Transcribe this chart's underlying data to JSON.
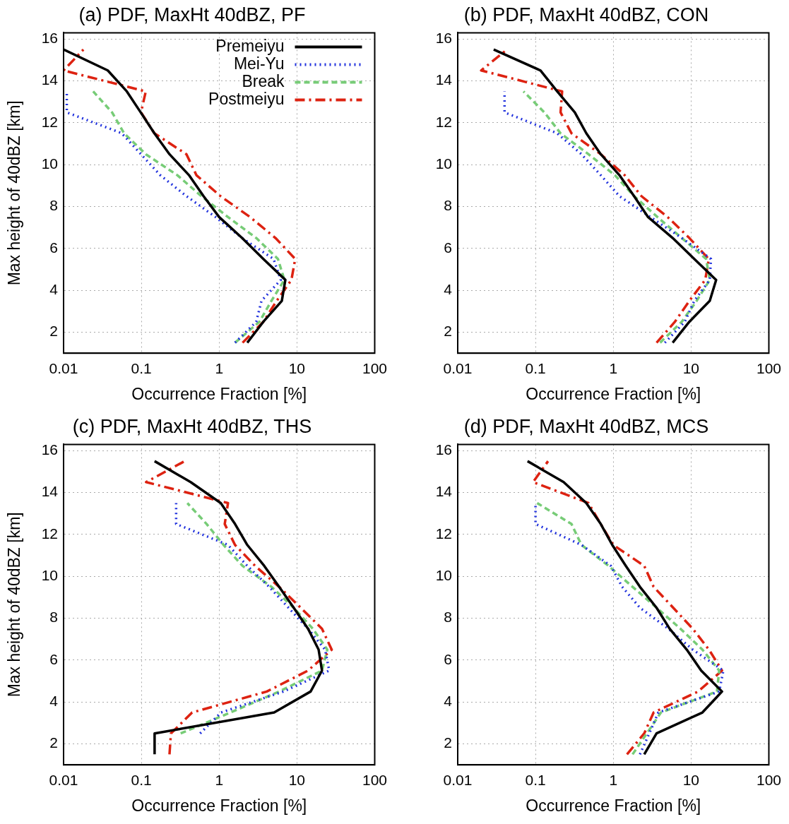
{
  "chart_data": [
    {
      "type": "line",
      "title": "(a) PDF, MaxHt 40dBZ, PF",
      "xlabel": "Occurrence Fraction [%]",
      "ylabel": "Max height of 40dBZ [km]",
      "log": "x",
      "xlim": [
        0.01,
        100
      ],
      "xticks": [
        0.01,
        0.1,
        1,
        10,
        100
      ],
      "ylim": [
        1,
        16.3
      ],
      "yticks": [
        2,
        4,
        6,
        8,
        10,
        12,
        14,
        16
      ],
      "grid": true,
      "legend": "top right",
      "series": [
        {
          "name": "Premeiyu",
          "color": "#000000",
          "line_style": "solid",
          "x": [
            2.3,
            3.7,
            6.4,
            7.1,
            3.7,
            1.97,
            1.0,
            0.63,
            0.41,
            0.23,
            0.147,
            0.098,
            0.065,
            0.037,
            0.01
          ],
          "values": [
            1.5,
            2.5,
            3.5,
            4.5,
            5.5,
            6.5,
            7.5,
            8.5,
            9.5,
            10.5,
            11.5,
            12.5,
            13.5,
            14.5,
            15.5
          ]
        },
        {
          "name": "Mei-Yu",
          "color": "#2233dd",
          "line_style": "dotted",
          "x": [
            1.6,
            3.0,
            3.5,
            6.2,
            5.0,
            1.97,
            0.9,
            0.38,
            0.175,
            0.099,
            0.056,
            0.011,
            0.011
          ],
          "values": [
            1.5,
            2.5,
            3.5,
            4.5,
            5.5,
            6.5,
            7.5,
            8.5,
            9.5,
            10.5,
            11.5,
            12.5,
            13.5
          ]
        },
        {
          "name": "Break",
          "color": "#77cc77",
          "line_style": "dashed",
          "x": [
            1.6,
            3.3,
            4.7,
            6.9,
            5.7,
            3.0,
            1.3,
            0.59,
            0.29,
            0.114,
            0.06,
            0.042,
            0.024
          ],
          "values": [
            1.5,
            2.5,
            3.5,
            4.5,
            5.5,
            6.5,
            7.5,
            8.5,
            9.5,
            10.5,
            11.5,
            12.5,
            13.5
          ]
        },
        {
          "name": "Postmeiyu",
          "color": "#dd2211",
          "line_style": "dashdot",
          "x": [
            2.0,
            3.7,
            5.5,
            8.5,
            9.5,
            5.3,
            2.5,
            1.04,
            0.51,
            0.38,
            0.147,
            0.099,
            0.114,
            0.01,
            0.018
          ],
          "values": [
            1.5,
            2.5,
            3.5,
            4.5,
            5.5,
            6.5,
            7.5,
            8.5,
            9.5,
            10.5,
            11.5,
            12.5,
            13.5,
            14.5,
            15.5
          ]
        }
      ]
    },
    {
      "type": "line",
      "title": "(b) PDF, MaxHt 40dBZ, CON",
      "xlabel": "Occurrence Fraction [%]",
      "log": "x",
      "xlim": [
        0.01,
        100
      ],
      "xticks": [
        0.01,
        0.1,
        1,
        10,
        100
      ],
      "ylim": [
        1,
        16.3
      ],
      "yticks": [
        2,
        4,
        6,
        8,
        10,
        12,
        14,
        16
      ],
      "grid": true,
      "series": [
        {
          "color": "#000000",
          "line_style": "solid",
          "x": [
            5.8,
            9.5,
            17.4,
            21,
            11,
            5.8,
            2.8,
            1.85,
            1.2,
            0.69,
            0.45,
            0.32,
            0.19,
            0.116,
            0.029
          ],
          "values": [
            1.5,
            2.5,
            3.5,
            4.5,
            5.5,
            6.5,
            7.5,
            8.5,
            9.5,
            10.5,
            11.5,
            12.5,
            13.5,
            14.5,
            15.5
          ]
        },
        {
          "color": "#2233dd",
          "line_style": "dotted",
          "x": [
            4.6,
            8.3,
            11,
            17.4,
            18,
            7.6,
            3.0,
            1.2,
            0.69,
            0.39,
            0.19,
            0.04,
            0.04
          ],
          "values": [
            1.5,
            2.5,
            3.5,
            4.5,
            5.5,
            6.5,
            7.5,
            8.5,
            9.5,
            10.5,
            11.5,
            12.5,
            13.5
          ]
        },
        {
          "color": "#77cc77",
          "line_style": "dashed",
          "x": [
            4.0,
            7.6,
            11.8,
            17.4,
            15.6,
            7.6,
            3.7,
            1.85,
            1.05,
            0.48,
            0.21,
            0.13,
            0.07
          ],
          "values": [
            1.5,
            2.5,
            3.5,
            4.5,
            5.5,
            6.5,
            7.5,
            8.5,
            9.5,
            10.5,
            11.5,
            12.5,
            13.5
          ]
        },
        {
          "color": "#dd2211",
          "line_style": "dashdot",
          "x": [
            3.6,
            6.2,
            9.5,
            15.2,
            16.9,
            9.5,
            5.0,
            2.3,
            1.4,
            0.69,
            0.29,
            0.21,
            0.22,
            0.02,
            0.043
          ],
          "values": [
            1.5,
            2.5,
            3.5,
            4.5,
            5.5,
            6.5,
            7.5,
            8.5,
            9.5,
            10.5,
            11.5,
            12.5,
            13.5,
            14.5,
            15.5
          ]
        }
      ]
    },
    {
      "type": "line",
      "title": "(c) PDF, MaxHt 40dBZ, THS",
      "xlabel": "Occurrence Fraction [%]",
      "ylabel": "Max height of 40dBZ [km]",
      "log": "x",
      "xlim": [
        0.01,
        100
      ],
      "xticks": [
        0.01,
        0.1,
        1,
        10,
        100
      ],
      "ylim": [
        1,
        16.3
      ],
      "yticks": [
        2,
        4,
        6,
        8,
        10,
        12,
        14,
        16
      ],
      "grid": true,
      "series": [
        {
          "color": "#000000",
          "line_style": "solid",
          "x": [
            0.148,
            0.148,
            5.1,
            15,
            21,
            19,
            13.9,
            9.1,
            5.9,
            3.8,
            2.3,
            1.6,
            1.05,
            0.43,
            0.148
          ],
          "values": [
            1.5,
            2.5,
            3.5,
            4.5,
            5.5,
            6.5,
            7.5,
            8.5,
            9.5,
            10.5,
            11.5,
            12.5,
            13.5,
            14.5,
            15.5
          ]
        },
        {
          "color": "#2233dd",
          "line_style": "dotted",
          "x": [
            0.57,
            1.06,
            6.7,
            26,
            23,
            13.9,
            7.8,
            4.4,
            2.3,
            1.3,
            0.28,
            0.28
          ],
          "values": [
            2.5,
            3.5,
            4.5,
            5.5,
            6.5,
            7.5,
            8.5,
            9.5,
            10.5,
            11.5,
            12.5,
            13.5
          ]
        },
        {
          "color": "#77cc77",
          "line_style": "dashed",
          "x": [
            0.32,
            1.4,
            5.9,
            21,
            24.6,
            16,
            9.1,
            4.7,
            2.0,
            1.14,
            0.69,
            0.39
          ],
          "values": [
            2.5,
            3.5,
            4.5,
            5.5,
            6.5,
            7.5,
            8.5,
            9.5,
            10.5,
            11.5,
            12.5,
            13.5
          ]
        },
        {
          "color": "#dd2211",
          "line_style": "dashdot",
          "x": [
            0.23,
            0.24,
            0.45,
            4.1,
            13.9,
            28,
            21,
            11.2,
            5.9,
            2.9,
            1.6,
            1.18,
            1.3,
            0.115,
            0.36
          ],
          "values": [
            1.5,
            2.5,
            3.5,
            4.5,
            5.5,
            6.5,
            7.5,
            8.5,
            9.5,
            10.5,
            11.5,
            12.5,
            13.5,
            14.5,
            15.5
          ]
        }
      ]
    },
    {
      "type": "line",
      "title": "(d) PDF, MaxHt 40dBZ, MCS",
      "xlabel": "Occurrence Fraction [%]",
      "log": "x",
      "xlim": [
        0.01,
        100
      ],
      "xticks": [
        0.01,
        0.1,
        1,
        10,
        100
      ],
      "ylim": [
        1,
        16.3
      ],
      "yticks": [
        2,
        4,
        6,
        8,
        10,
        12,
        14,
        16
      ],
      "grid": true,
      "series": [
        {
          "color": "#000000",
          "line_style": "solid",
          "x": [
            2.5,
            3.6,
            14,
            25,
            13.5,
            8.8,
            5.3,
            3.6,
            2.2,
            1.45,
            0.97,
            0.69,
            0.45,
            0.23,
            0.079
          ],
          "values": [
            1.5,
            2.5,
            3.5,
            4.5,
            5.5,
            6.5,
            7.5,
            8.5,
            9.5,
            10.5,
            11.5,
            12.5,
            13.5,
            14.5,
            15.5
          ]
        },
        {
          "color": "#2233dd",
          "line_style": "dotted",
          "x": [
            2.2,
            2.9,
            3.8,
            23,
            26,
            10.5,
            5.1,
            2.2,
            1.3,
            0.93,
            0.39,
            0.1,
            0.1
          ],
          "values": [
            1.5,
            2.5,
            3.5,
            4.5,
            5.5,
            6.5,
            7.5,
            8.5,
            9.5,
            10.5,
            11.5,
            12.5,
            13.5
          ]
        },
        {
          "color": "#77cc77",
          "line_style": "dashed",
          "x": [
            1.77,
            2.7,
            4.1,
            21.5,
            23,
            14,
            7.3,
            3.6,
            1.77,
            0.87,
            0.39,
            0.29,
            0.105
          ],
          "values": [
            1.5,
            2.5,
            3.5,
            4.5,
            5.5,
            6.5,
            7.5,
            8.5,
            9.5,
            10.5,
            11.5,
            12.5,
            13.5
          ]
        },
        {
          "color": "#dd2211",
          "line_style": "dashdot",
          "x": [
            1.5,
            2.5,
            3.3,
            12.3,
            25,
            17,
            10.5,
            5.9,
            3.3,
            2.5,
            1.0,
            0.69,
            0.48,
            0.093,
            0.145
          ],
          "values": [
            1.5,
            2.5,
            3.5,
            4.5,
            5.5,
            6.5,
            7.5,
            8.5,
            9.5,
            10.5,
            11.5,
            12.5,
            13.5,
            14.5,
            15.5
          ]
        }
      ]
    }
  ]
}
